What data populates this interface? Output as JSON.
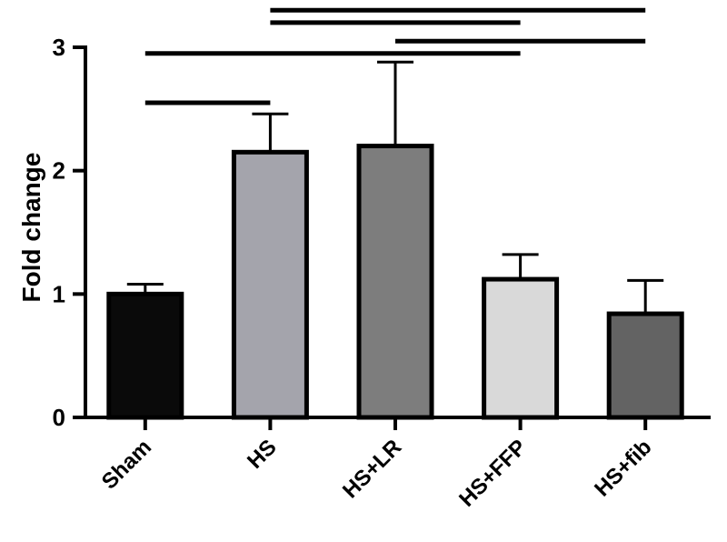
{
  "chart_data": {
    "type": "bar",
    "title": "",
    "xlabel": "",
    "ylabel": "Fold change",
    "ylim": [
      0,
      3
    ],
    "yticks": [
      0,
      1,
      2,
      3
    ],
    "grid": false,
    "categories": [
      "Sham",
      "HS",
      "HS+LR",
      "HS+FFP",
      "HS+fib"
    ],
    "values": [
      1.0,
      2.15,
      2.2,
      1.12,
      0.84
    ],
    "error_upper": [
      0.08,
      0.31,
      0.68,
      0.2,
      0.27
    ],
    "bar_colors": [
      "#0a0a0a",
      "#a4a4ac",
      "#7d7d7d",
      "#d9d9d9",
      "#636363"
    ],
    "significance_brackets": [
      {
        "from": "HS",
        "to": "HS+fib",
        "y": 3.3
      },
      {
        "from": "HS",
        "to": "HS+FFP",
        "y": 3.2
      },
      {
        "from": "HS+LR",
        "to": "HS+fib",
        "y": 3.05
      },
      {
        "from": "Sham",
        "to": "HS+FFP",
        "y": 2.95
      },
      {
        "from": "Sham",
        "to": "HS",
        "y": 2.55
      }
    ]
  }
}
